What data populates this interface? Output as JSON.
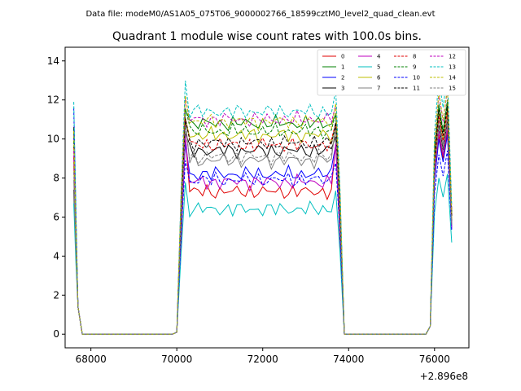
{
  "suptitle": "Data file: modeM0/AS1A05_075T06_9000002766_18599cztM0_level2_quad_clean.evt",
  "chart_data": {
    "type": "line",
    "title": "Quadrant 1 module wise count rates with 100.0s bins.",
    "xlabel": "",
    "ylabel": "",
    "x_offset_label": "+2.896e8",
    "xlim": [
      67400,
      76800
    ],
    "ylim": [
      -0.7,
      14.7
    ],
    "x_ticks": [
      68000,
      70000,
      72000,
      74000,
      76000
    ],
    "x_tick_labels": [
      "68000",
      "70000",
      "72000",
      "74000",
      "76000"
    ],
    "y_ticks": [
      0,
      2,
      4,
      6,
      8,
      10,
      12,
      14
    ],
    "y_tick_labels": [
      "0",
      "2",
      "4",
      "6",
      "8",
      "10",
      "12",
      "14"
    ],
    "grid": false,
    "legend_position": "top-right",
    "segments": [
      {
        "start": 67600,
        "end": 67700
      },
      {
        "start": 67800,
        "end": 69900
      },
      {
        "start": 70000,
        "end": 73800
      },
      {
        "start": 73900,
        "end": 75800
      },
      {
        "start": 75900,
        "end": 76400
      }
    ],
    "series": [
      {
        "name": "0",
        "color": "#e00000",
        "dash": "solid",
        "level": 7.3,
        "start": 9.1,
        "edge": 10.0,
        "final": 5.6
      },
      {
        "name": "1",
        "color": "#008000",
        "dash": "solid",
        "level": 10.8,
        "start": 10.5,
        "edge": 11.5,
        "final": 6.2
      },
      {
        "name": "2",
        "color": "#0000ff",
        "dash": "solid",
        "level": 8.2,
        "start": 10.2,
        "edge": 9.8,
        "final": 5.5
      },
      {
        "name": "3",
        "color": "#000000",
        "dash": "solid",
        "level": 9.4,
        "start": 7.4,
        "edge": 10.5,
        "final": 5.8
      },
      {
        "name": "4",
        "color": "#bf00bf",
        "dash": "solid",
        "level": 7.8,
        "start": 8.6,
        "edge": 10.2,
        "final": 5.4
      },
      {
        "name": "5",
        "color": "#00bfbf",
        "dash": "solid",
        "level": 6.4,
        "start": 6.7,
        "edge": 7.8,
        "final": 4.7
      },
      {
        "name": "6",
        "color": "#bfbf00",
        "dash": "solid",
        "level": 10.2,
        "start": 8.8,
        "edge": 11.1,
        "final": 5.9
      },
      {
        "name": "7",
        "color": "#808080",
        "dash": "solid",
        "level": 8.9,
        "start": 7.9,
        "edge": 10.8,
        "final": 5.7
      },
      {
        "name": "8",
        "color": "#e00000",
        "dash": "dashed",
        "level": 9.7,
        "start": 9.6,
        "edge": 11.0,
        "final": 6.1
      },
      {
        "name": "9",
        "color": "#008000",
        "dash": "dashed",
        "level": 10.4,
        "start": 9.9,
        "edge": 11.6,
        "final": 6.3
      },
      {
        "name": "10",
        "color": "#0000ff",
        "dash": "dashed",
        "level": 7.9,
        "start": 11.6,
        "edge": 9.0,
        "final": 5.3
      },
      {
        "name": "11",
        "color": "#000000",
        "dash": "dashed",
        "level": 9.8,
        "start": 10.6,
        "edge": 11.3,
        "final": 6.0
      },
      {
        "name": "12",
        "color": "#bf00bf",
        "dash": "dashed",
        "level": 11.0,
        "start": 9.4,
        "edge": 12.1,
        "final": 6.4
      },
      {
        "name": "13",
        "color": "#00bfbf",
        "dash": "dashed",
        "level": 11.4,
        "start": 11.9,
        "edge": 12.9,
        "final": 6.6
      },
      {
        "name": "14",
        "color": "#bfbf00",
        "dash": "dashed",
        "level": 10.9,
        "start": 10.4,
        "edge": 12.2,
        "final": 6.2
      },
      {
        "name": "15",
        "color": "#808080",
        "dash": "dashed",
        "level": 9.1,
        "start": 8.3,
        "edge": 10.4,
        "final": 5.6
      }
    ]
  }
}
